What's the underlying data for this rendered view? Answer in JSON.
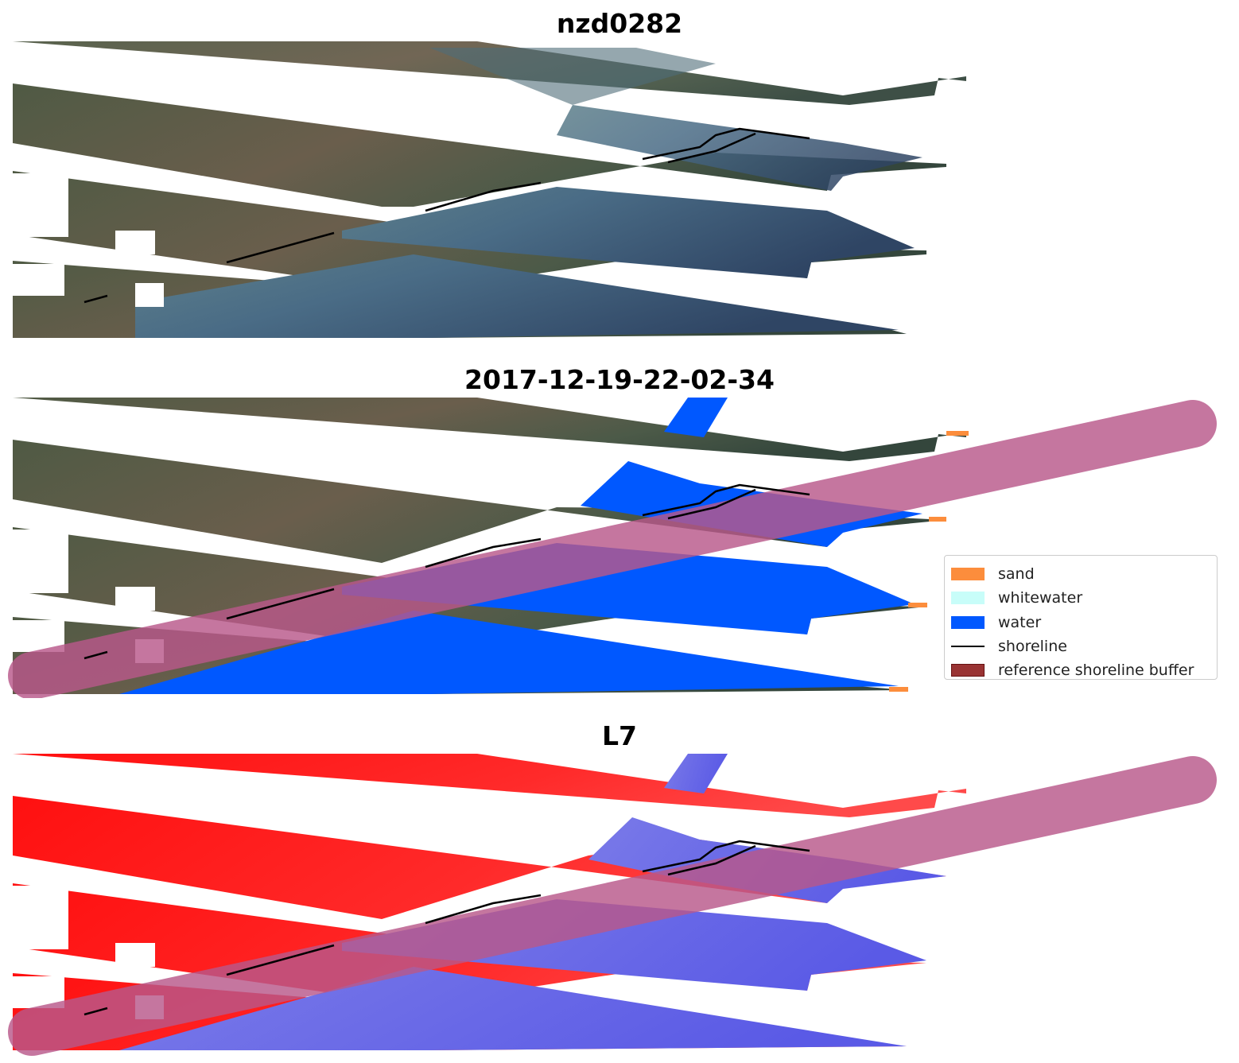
{
  "panels": [
    {
      "title": "nzd0282"
    },
    {
      "title": "2017-12-19-22-02-34"
    },
    {
      "title": "L7"
    }
  ],
  "legend": {
    "items": [
      {
        "label": "sand",
        "color": "#fc8d3c",
        "kind": "patch"
      },
      {
        "label": "whitewater",
        "color": "#c8fdf9",
        "kind": "patch"
      },
      {
        "label": "water",
        "color": "#0058ff",
        "kind": "patch"
      },
      {
        "label": "shoreline",
        "color": "#000000",
        "kind": "line"
      },
      {
        "label": "reference shoreline buffer",
        "color": "#993333",
        "kind": "patch"
      }
    ]
  },
  "colors": {
    "land_rgb": "#555a4a",
    "sea_rgb": "#3a5470",
    "ndwi_land": "#ff1a1a",
    "ndwi_water": "#6a6af0",
    "buffer_overlay": "#b8588a"
  }
}
